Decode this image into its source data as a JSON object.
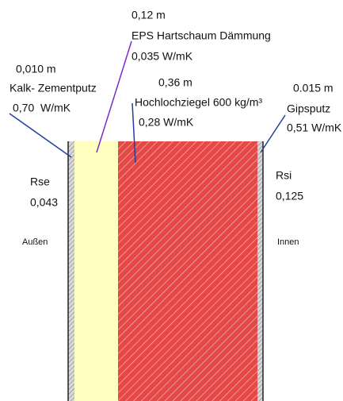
{
  "layers": [
    {
      "thickness": "0,010 m",
      "name": "Kalk- Zementputz",
      "conductivity": "0,70  W/mK"
    },
    {
      "thickness": "0,12 m",
      "name": "EPS Hartschaum Dämmung",
      "conductivity": "0,035 W/mK"
    },
    {
      "thickness": "0,36 m",
      "name": "Hochlochziegel 600 kg/m³",
      "conductivity": "0,28 W/mK"
    },
    {
      "thickness": "0.015 m",
      "name": "Gipsputz",
      "conductivity": "0,51 W/mK"
    }
  ],
  "outside": {
    "resistance_label": "Rse",
    "resistance": "0,043",
    "side": "Außen"
  },
  "inside": {
    "resistance_label": "Rsi",
    "resistance": "0,125",
    "side": "Innen"
  }
}
